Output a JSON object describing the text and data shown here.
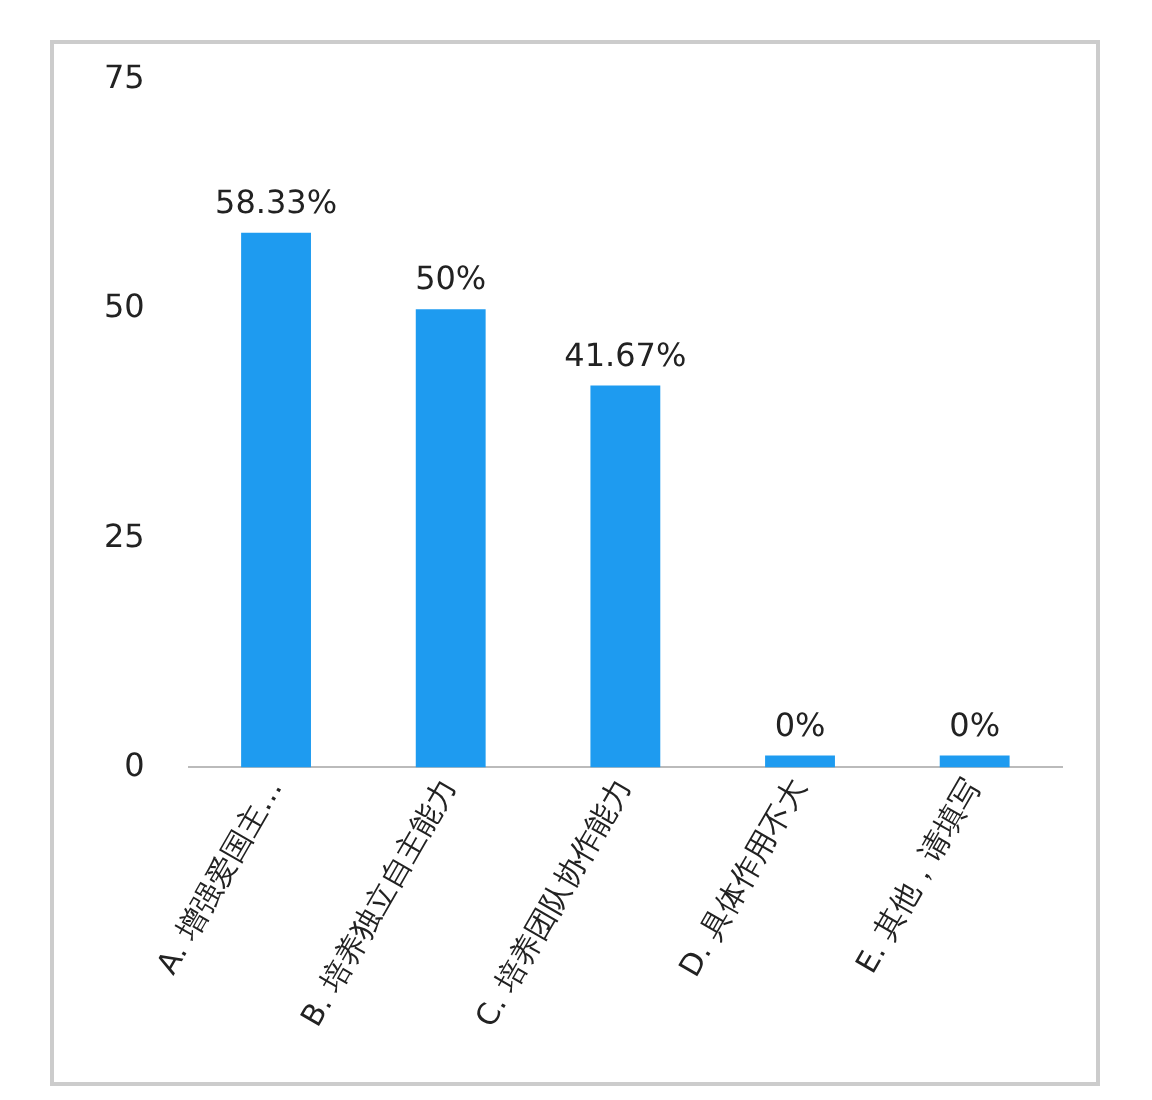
{
  "chart_data": {
    "type": "bar",
    "categories": [
      "A. 增强爱国主…",
      "B. 培养独立自主能力",
      "C. 培养团队协作能力",
      "D. 具体作用不大",
      "E. 其他，请填写"
    ],
    "values": [
      58.33,
      50,
      41.67,
      0,
      0
    ],
    "value_labels": [
      "58.33%",
      "50%",
      "41.67%",
      "0%",
      "0%"
    ],
    "color": "#1e9bf0",
    "ylim": [
      0,
      75
    ],
    "yticks": [
      0,
      25,
      50,
      75
    ],
    "grid": false,
    "legend": false
  }
}
